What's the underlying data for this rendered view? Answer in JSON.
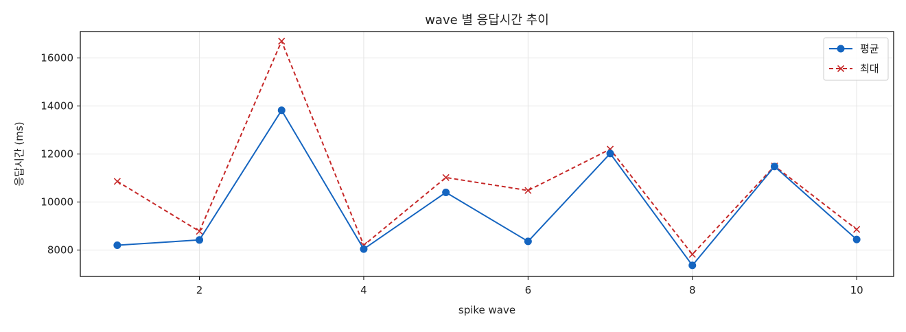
{
  "chart_data": {
    "type": "line",
    "title": "wave 별 응답시간 추이",
    "xlabel": "spike wave",
    "ylabel": "응답시간 (ms)",
    "x": [
      1,
      2,
      3,
      4,
      5,
      6,
      7,
      8,
      9,
      10
    ],
    "xlim": [
      0.55,
      10.45
    ],
    "ylim": [
      6900,
      17100
    ],
    "xticks": [
      2,
      4,
      6,
      8,
      10
    ],
    "yticks": [
      8000,
      10000,
      12000,
      14000,
      16000
    ],
    "grid": true,
    "legend_position": "top-right",
    "series": [
      {
        "name": "평균",
        "values": [
          8200,
          8420,
          13820,
          8040,
          10400,
          8360,
          12020,
          7360,
          11480,
          8440
        ],
        "color": "#1565c0",
        "line_style": "solid",
        "marker": "circle"
      },
      {
        "name": "최대",
        "values": [
          10860,
          8780,
          16700,
          8200,
          11020,
          10480,
          12200,
          7820,
          11500,
          8860
        ],
        "color": "#c62828",
        "line_style": "dashed",
        "marker": "x"
      }
    ]
  }
}
